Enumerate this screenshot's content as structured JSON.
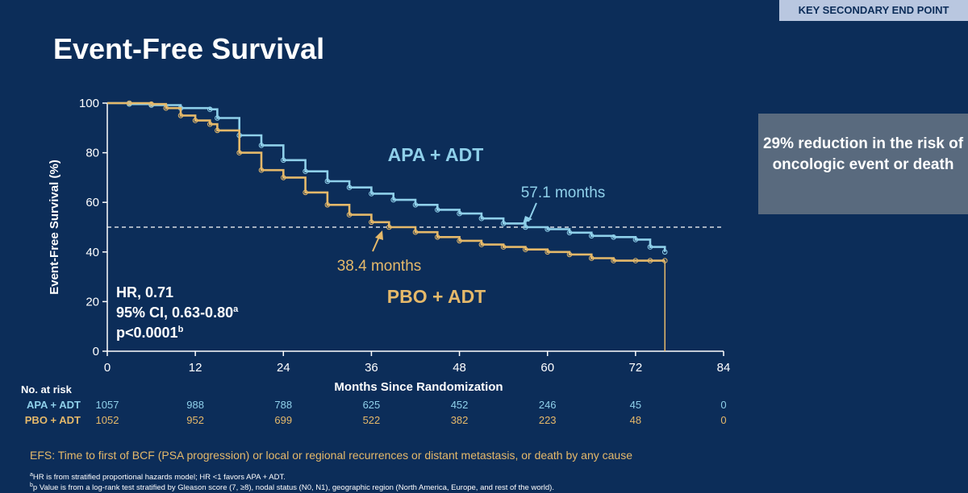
{
  "slide": {
    "tag": "KEY SECONDARY END POINT",
    "title": "Event-Free Survival",
    "callout": "29% reduction in the risk of oncologic event or death"
  },
  "colors": {
    "background": "#0c2d59",
    "apa": "#8fd0ea",
    "pbo": "#e5b96a",
    "callout_bg": "#596a7e"
  },
  "chart_data": {
    "type": "line",
    "title": "",
    "xlabel": "Months Since Randomization",
    "ylabel": "Event-Free Survival (%)",
    "xlim": [
      0,
      84
    ],
    "ylim": [
      0,
      100
    ],
    "xticks": [
      0,
      12,
      24,
      36,
      48,
      60,
      72,
      84
    ],
    "yticks": [
      0,
      20,
      40,
      60,
      80,
      100
    ],
    "grid": false,
    "reference_line": {
      "y": 50,
      "style": "dashed"
    },
    "series": [
      {
        "name": "APA + ADT",
        "color": "#8fd0ea",
        "x": [
          0,
          3,
          6,
          10,
          14,
          15,
          18,
          21,
          24,
          27,
          30,
          33,
          36,
          39,
          42,
          45,
          48,
          51,
          54,
          57,
          60,
          63,
          66,
          69,
          72,
          74,
          76
        ],
        "y": [
          100,
          99.6,
          99.2,
          98,
          97.5,
          94,
          87,
          83,
          77,
          72.5,
          68.5,
          66,
          63.5,
          61,
          59,
          57,
          55.5,
          53.5,
          51.5,
          50,
          49.2,
          47.8,
          46.5,
          46,
          45,
          42,
          40
        ]
      },
      {
        "name": "PBO + ADT",
        "color": "#e5b96a",
        "x": [
          0,
          3,
          6,
          8,
          10,
          12,
          14,
          15,
          18,
          21,
          24,
          27,
          30,
          33,
          36,
          38.4,
          42,
          45,
          48,
          51,
          54,
          57,
          60,
          63,
          66,
          69,
          72,
          74,
          76
        ],
        "y": [
          100,
          100,
          99.6,
          98,
          95,
          93,
          91.5,
          89,
          80,
          73,
          70,
          64,
          59,
          55,
          52,
          50,
          48,
          46,
          44.5,
          43,
          42,
          41,
          40,
          39,
          37.5,
          36.5,
          36.5,
          36.5,
          36.5
        ]
      }
    ],
    "annotations": [
      {
        "text": "APA + ADT",
        "color": "#8fd0ea"
      },
      {
        "text": "57.1 months",
        "x": 57.1,
        "y": 50,
        "color": "#8fd0ea"
      },
      {
        "text": "38.4 months",
        "x": 38.4,
        "y": 50,
        "color": "#e5b96a"
      },
      {
        "text": "PBO + ADT",
        "color": "#e5b96a"
      }
    ],
    "stats": {
      "hr": "HR, 0.71",
      "ci": "95% CI, 0.63-0.80",
      "ci_sup": "a",
      "p": "p<0.0001",
      "p_sup": "b"
    }
  },
  "risk_table": {
    "header": "No. at risk",
    "rows": [
      {
        "label": "APA + ADT",
        "values": [
          "1057",
          "988",
          "788",
          "625",
          "452",
          "246",
          "45",
          "0"
        ]
      },
      {
        "label": "PBO + ADT",
        "values": [
          "1052",
          "952",
          "699",
          "522",
          "382",
          "223",
          "48",
          "0"
        ]
      }
    ]
  },
  "notes": {
    "efs": "EFS: Time to first of BCF (PSA progression) or local or regional recurrences or distant metastasis, or death by any cause",
    "footnote_a_mark": "a",
    "footnote_a": "HR is from stratified proportional hazards model; HR <1 favors APA + ADT.",
    "footnote_b_mark": "b",
    "footnote_b": "p Value is from a log-rank test stratified by Gleason score (7, ≥8), nodal status (N0, N1), geographic region (North America, Europe, and rest of the world)."
  }
}
